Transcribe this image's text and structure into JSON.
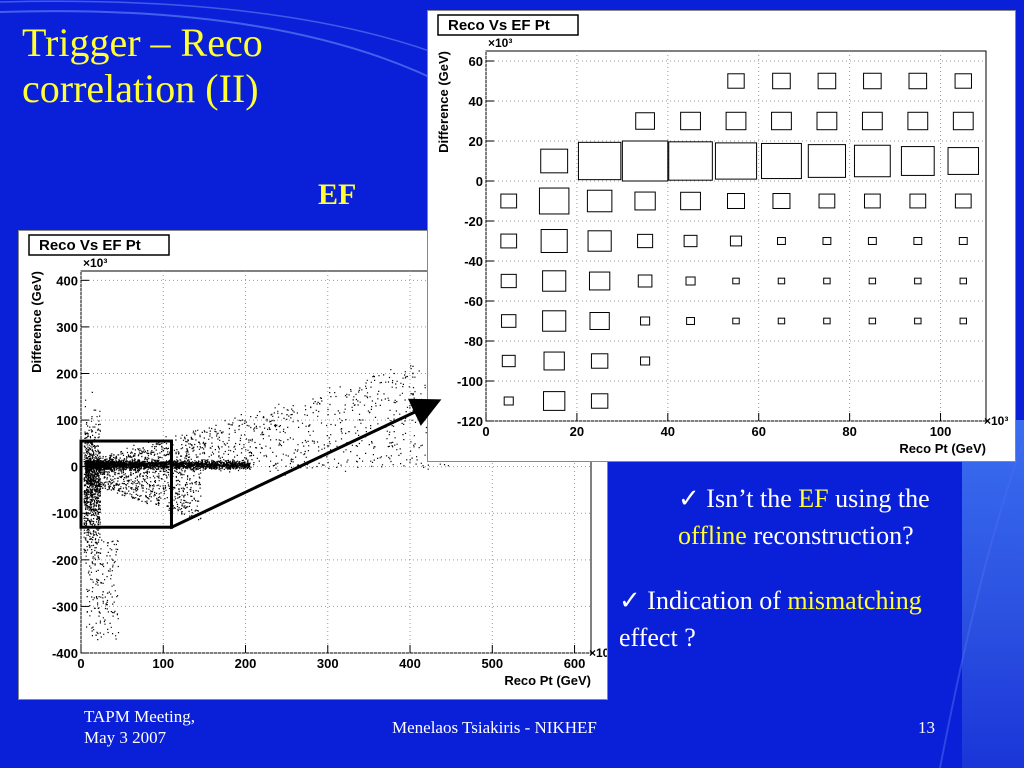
{
  "slide": {
    "title_line1": "Trigger – Reco",
    "title_line2": "correlation (II)",
    "ef_label": "EF",
    "bullet1_check": "✓",
    "bullet1_a": "Isn’t the ",
    "bullet1_hl": "EF",
    "bullet1_b": " using the",
    "bullet1_hl2": "offline",
    "bullet1_c": " reconstruction?",
    "bullet2_check": "✓",
    "bullet2_a": "Indication of ",
    "bullet2_hl": "mismatching",
    "bullet2_b": "effect ?",
    "footer_left_line1": "TAPM Meeting,",
    "footer_left_line2": "May 3 2007",
    "footer_center": "Menelaos Tsiakiris - NIKHEF",
    "footer_page": "13"
  },
  "colors": {
    "background": "#0a20d8",
    "title": "#ffff33",
    "text": "#ffffff",
    "highlight": "#ffff33"
  },
  "chart_data": [
    {
      "type": "scatter",
      "title": "Reco Vs EF Pt",
      "xlabel": "Reco Pt (GeV)",
      "ylabel": "Difference (GeV)",
      "x_multiplier": "×10³",
      "y_multiplier": "×10³",
      "xlim": [
        0,
        620
      ],
      "ylim": [
        -400,
        420
      ],
      "x_ticks": [
        0,
        100,
        200,
        300,
        400,
        500,
        600
      ],
      "y_ticks": [
        -400,
        -300,
        -200,
        -100,
        0,
        100,
        200,
        300,
        400
      ],
      "grid": true,
      "zoom_box": {
        "x": [
          0,
          110
        ],
        "y": [
          -130,
          55
        ]
      }
    },
    {
      "type": "heatmap",
      "title": "Reco Vs EF Pt",
      "xlabel": "Reco Pt (GeV)",
      "ylabel": "Difference (GeV)",
      "x_multiplier": "×10³",
      "y_multiplier": "×10³",
      "xlim": [
        0,
        110
      ],
      "ylim": [
        -120,
        65
      ],
      "x_ticks": [
        0,
        20,
        40,
        60,
        80,
        100
      ],
      "y_ticks": [
        -120,
        -100,
        -80,
        -60,
        -40,
        -20,
        0,
        20,
        40,
        60
      ],
      "grid": true,
      "x_centers": [
        5,
        15,
        25,
        35,
        45,
        55,
        65,
        75,
        85,
        95,
        105
      ],
      "y_centers": [
        -110,
        -90,
        -70,
        -50,
        -30,
        -10,
        10,
        30,
        50
      ],
      "cells": [
        [
          0.04,
          0.22,
          0.13,
          0,
          0,
          0,
          0,
          0,
          0,
          0,
          0
        ],
        [
          0.08,
          0.2,
          0.13,
          0.04,
          0,
          0,
          0,
          0,
          0,
          0,
          0
        ],
        [
          0.1,
          0.26,
          0.18,
          0.04,
          0.03,
          0.02,
          0.02,
          0.02,
          0.02,
          0.02,
          0.02
        ],
        [
          0.11,
          0.26,
          0.2,
          0.09,
          0.04,
          0.02,
          0.02,
          0.02,
          0.02,
          0.02,
          0.02
        ],
        [
          0.12,
          0.33,
          0.26,
          0.11,
          0.08,
          0.06,
          0.03,
          0.03,
          0.03,
          0.03,
          0.03
        ],
        [
          0.12,
          0.42,
          0.29,
          0.2,
          0.19,
          0.14,
          0.14,
          0.12,
          0.12,
          0.12,
          0.12
        ],
        [
          0,
          0.35,
          0.87,
          1.0,
          0.92,
          0.82,
          0.77,
          0.67,
          0.62,
          0.52,
          0.45
        ],
        [
          0,
          0,
          0,
          0.17,
          0.19,
          0.19,
          0.19,
          0.19,
          0.19,
          0.19,
          0.19
        ],
        [
          0,
          0,
          0,
          0,
          0,
          0.13,
          0.15,
          0.15,
          0.15,
          0.15,
          0.13
        ]
      ]
    }
  ]
}
